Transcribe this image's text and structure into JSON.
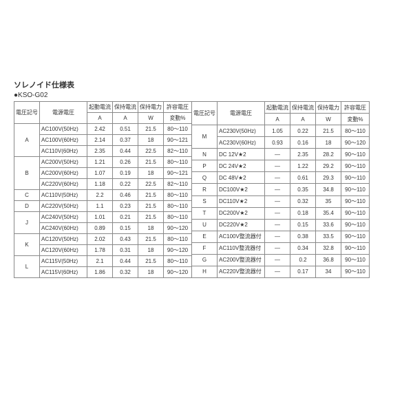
{
  "title": "ソレノイド仕様表",
  "subtitle": "●KSO-G02",
  "headers": {
    "symbol": "電圧記号",
    "power_supply": "電源電圧",
    "starting_current": "起動電流",
    "starting_current_unit": "A",
    "holding_current": "保持電流",
    "holding_current_unit": "A",
    "holding_power": "保持電力",
    "holding_power_unit": "W",
    "voltage_variation": "許容電圧",
    "voltage_variation_unit": "変動%"
  },
  "colors": {
    "border": "#888888",
    "text": "#333333",
    "background": "#ffffff"
  },
  "left_rows": [
    {
      "sym": "A",
      "rowspan": 3,
      "ps": "AC100V(50Hz)",
      "sc": "2.42",
      "hc": "0.51",
      "hp": "21.5",
      "vv": "80～110"
    },
    {
      "ps": "AC100V(60Hz)",
      "sc": "2.14",
      "hc": "0.37",
      "hp": "18",
      "vv": "90～121"
    },
    {
      "ps": "AC110V(60Hz)",
      "sc": "2.35",
      "hc": "0.44",
      "hp": "22.5",
      "vv": "82～110"
    },
    {
      "sym": "B",
      "rowspan": 3,
      "ps": "AC200V(50Hz)",
      "sc": "1.21",
      "hc": "0.26",
      "hp": "21.5",
      "vv": "80～110"
    },
    {
      "ps": "AC200V(60Hz)",
      "sc": "1.07",
      "hc": "0.19",
      "hp": "18",
      "vv": "90～121"
    },
    {
      "ps": "AC220V(60Hz)",
      "sc": "1.18",
      "hc": "0.22",
      "hp": "22.5",
      "vv": "82～110"
    },
    {
      "sym": "C",
      "rowspan": 1,
      "ps": "AC110V(50Hz)",
      "sc": "2.2",
      "hc": "0.46",
      "hp": "21.5",
      "vv": "80～110"
    },
    {
      "sym": "D",
      "rowspan": 1,
      "ps": "AC220V(50Hz)",
      "sc": "1.1",
      "hc": "0.23",
      "hp": "21.5",
      "vv": "80～110"
    },
    {
      "sym": "J",
      "rowspan": 2,
      "ps": "AC240V(50Hz)",
      "sc": "1.01",
      "hc": "0.21",
      "hp": "21.5",
      "vv": "80～110"
    },
    {
      "ps": "AC240V(60Hz)",
      "sc": "0.89",
      "hc": "0.15",
      "hp": "18",
      "vv": "90～120"
    },
    {
      "sym": "K",
      "rowspan": 2,
      "ps": "AC120V(50Hz)",
      "sc": "2.02",
      "hc": "0.43",
      "hp": "21.5",
      "vv": "80～110"
    },
    {
      "ps": "AC120V(60Hz)",
      "sc": "1.78",
      "hc": "0.31",
      "hp": "18",
      "vv": "90～120"
    },
    {
      "sym": "L",
      "rowspan": 2,
      "ps": "AC115V(50Hz)",
      "sc": "2.1",
      "hc": "0.44",
      "hp": "21.5",
      "vv": "80～110"
    },
    {
      "ps": "AC115V(60Hz)",
      "sc": "1.86",
      "hc": "0.32",
      "hp": "18",
      "vv": "90～120"
    }
  ],
  "right_rows": [
    {
      "sym": "M",
      "rowspan": 2,
      "ps": "AC230V(50Hz)",
      "sc": "1.05",
      "hc": "0.22",
      "hp": "21.5",
      "vv": "80～110"
    },
    {
      "ps": "AC230V(60Hz)",
      "sc": "0.93",
      "hc": "0.16",
      "hp": "18",
      "vv": "90～120"
    },
    {
      "sym": "N",
      "rowspan": 1,
      "ps": "DC 12V★2",
      "sc": "—",
      "hc": "2.35",
      "hp": "28.2",
      "vv": "90～110"
    },
    {
      "sym": "P",
      "rowspan": 1,
      "ps": "DC 24V★2",
      "sc": "—",
      "hc": "1.22",
      "hp": "29.2",
      "vv": "90～110"
    },
    {
      "sym": "Q",
      "rowspan": 1,
      "ps": "DC 48V★2",
      "sc": "—",
      "hc": "0.61",
      "hp": "29.3",
      "vv": "90～110"
    },
    {
      "sym": "R",
      "rowspan": 1,
      "ps": "DC100V★2",
      "sc": "—",
      "hc": "0.35",
      "hp": "34.8",
      "vv": "90～110"
    },
    {
      "sym": "S",
      "rowspan": 1,
      "ps": "DC110V★2",
      "sc": "—",
      "hc": "0.32",
      "hp": "35",
      "vv": "90～110"
    },
    {
      "sym": "T",
      "rowspan": 1,
      "ps": "DC200V★2",
      "sc": "—",
      "hc": "0.18",
      "hp": "35.4",
      "vv": "90～110"
    },
    {
      "sym": "U",
      "rowspan": 1,
      "ps": "DC220V★2",
      "sc": "—",
      "hc": "0.15",
      "hp": "33.6",
      "vv": "90～110"
    },
    {
      "sym": "E",
      "rowspan": 1,
      "ps": "AC100V整流器付",
      "sc": "—",
      "hc": "0.38",
      "hp": "33.5",
      "vv": "90～110"
    },
    {
      "sym": "F",
      "rowspan": 1,
      "ps": "AC110V整流器付",
      "sc": "—",
      "hc": "0.34",
      "hp": "32.8",
      "vv": "90～110"
    },
    {
      "sym": "G",
      "rowspan": 1,
      "ps": "AC200V整流器付",
      "sc": "—",
      "hc": "0.2",
      "hp": "36.8",
      "vv": "90～110"
    },
    {
      "sym": "H",
      "rowspan": 1,
      "ps": "AC220V整流器付",
      "sc": "—",
      "hc": "0.17",
      "hp": "34",
      "vv": "90～110"
    }
  ]
}
